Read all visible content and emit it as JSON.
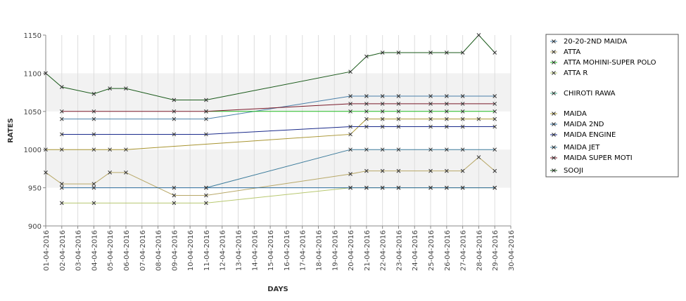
{
  "chart_data": {
    "type": "line",
    "title": "",
    "xlabel": "DAYS",
    "ylabel": "RATES",
    "ylim": [
      900,
      1150
    ],
    "yticks": [
      900,
      950,
      1000,
      1050,
      1100,
      1150
    ],
    "grid": true,
    "legend_position": "right",
    "categories": [
      "01-04-2016",
      "02-04-2016",
      "03-04-2016",
      "04-04-2016",
      "05-04-2016",
      "06-04-2016",
      "07-04-2016",
      "08-04-2016",
      "09-04-2016",
      "10-04-2016",
      "11-04-2016",
      "12-04-2016",
      "13-04-2016",
      "14-04-2016",
      "15-04-2016",
      "16-04-2016",
      "17-04-2016",
      "18-04-2016",
      "19-04-2016",
      "20-04-2016",
      "21-04-2016",
      "22-04-2016",
      "23-04-2016",
      "24-04-2016",
      "25-04-2016",
      "26-04-2016",
      "27-04-2016",
      "28-04-2016",
      "29-04-2016",
      "30-04-2016"
    ],
    "series": [
      {
        "name": "20-20-2ND MAIDA",
        "color": "#4a7fa8",
        "values": [
          null,
          1040,
          null,
          1040,
          null,
          null,
          null,
          null,
          1040,
          null,
          1040,
          null,
          null,
          null,
          null,
          null,
          null,
          null,
          null,
          1070,
          1070,
          1070,
          1070,
          null,
          1070,
          1070,
          1070,
          null,
          1070,
          null
        ]
      },
      {
        "name": "ATTA",
        "color": "#b8a868",
        "values": [
          970,
          955,
          null,
          955,
          970,
          970,
          null,
          null,
          940,
          null,
          940,
          null,
          null,
          null,
          null,
          null,
          null,
          null,
          null,
          968,
          972,
          972,
          972,
          null,
          972,
          972,
          972,
          990,
          972,
          null
        ]
      },
      {
        "name": "ATTA MOHINI-SUPER POLO",
        "color": "#22bb22",
        "values": [
          null,
          null,
          null,
          null,
          null,
          null,
          null,
          null,
          null,
          null,
          1050,
          null,
          null,
          null,
          null,
          null,
          null,
          null,
          null,
          1050,
          1050,
          1050,
          1050,
          null,
          1050,
          1050,
          1050,
          null,
          1050,
          null
        ]
      },
      {
        "name": "ATTA R",
        "color": "#b8c870",
        "values": [
          null,
          930,
          null,
          930,
          null,
          null,
          null,
          null,
          930,
          null,
          930,
          null,
          null,
          null,
          null,
          null,
          null,
          null,
          null,
          950,
          950,
          950,
          950,
          null,
          950,
          950,
          950,
          null,
          950,
          null
        ]
      },
      {
        "name": "CHIROTI RAWA",
        "color": "#44aa88",
        "values": [
          null,
          null,
          null,
          null,
          null,
          null,
          null,
          null,
          null,
          null,
          null,
          null,
          null,
          null,
          null,
          null,
          null,
          null,
          null,
          null,
          null,
          null,
          null,
          null,
          null,
          null,
          null,
          null,
          null,
          null
        ]
      },
      {
        "name": "MAIDA",
        "color": "#a89430",
        "values": [
          1000,
          1000,
          null,
          1000,
          1000,
          1000,
          null,
          null,
          null,
          null,
          null,
          null,
          null,
          null,
          null,
          null,
          null,
          null,
          null,
          1020,
          1040,
          1040,
          1040,
          null,
          1040,
          1040,
          1040,
          1040,
          1040,
          null
        ]
      },
      {
        "name": "MAIDA 2ND",
        "color": "#2a6a9a",
        "values": [
          null,
          950,
          null,
          950,
          null,
          null,
          null,
          null,
          950,
          null,
          950,
          null,
          null,
          null,
          null,
          null,
          null,
          null,
          null,
          950,
          950,
          950,
          950,
          null,
          950,
          950,
          950,
          null,
          950,
          null
        ]
      },
      {
        "name": "MAIDA ENGINE",
        "color": "#1a2a8a",
        "values": [
          null,
          1020,
          null,
          1020,
          null,
          null,
          null,
          null,
          1020,
          null,
          1020,
          null,
          null,
          null,
          null,
          null,
          null,
          null,
          null,
          1030,
          1030,
          1030,
          1030,
          null,
          1030,
          1030,
          1030,
          null,
          1030,
          null
        ]
      },
      {
        "name": "MAIDA JET",
        "color": "#3a7a9a",
        "values": [
          null,
          null,
          null,
          null,
          null,
          null,
          null,
          null,
          null,
          null,
          950,
          null,
          null,
          null,
          null,
          null,
          null,
          null,
          null,
          1000,
          1000,
          1000,
          1000,
          null,
          1000,
          1000,
          1000,
          null,
          1000,
          null
        ]
      },
      {
        "name": "MAIDA SUPER MOTI",
        "color": "#7a1a2a",
        "values": [
          null,
          1050,
          null,
          1050,
          null,
          null,
          null,
          null,
          1050,
          null,
          1050,
          null,
          null,
          null,
          null,
          null,
          null,
          null,
          null,
          1060,
          1060,
          1060,
          1060,
          null,
          1060,
          1060,
          1060,
          null,
          1060,
          null
        ]
      },
      {
        "name": "SOOJI",
        "color": "#1a5a1a",
        "values": [
          1100,
          1082,
          null,
          1073,
          1080,
          1080,
          null,
          null,
          1065,
          null,
          1065,
          null,
          null,
          null,
          null,
          null,
          null,
          null,
          null,
          1102,
          1122,
          1127,
          1127,
          null,
          1127,
          1127,
          1127,
          1150,
          1127,
          null
        ]
      }
    ]
  }
}
